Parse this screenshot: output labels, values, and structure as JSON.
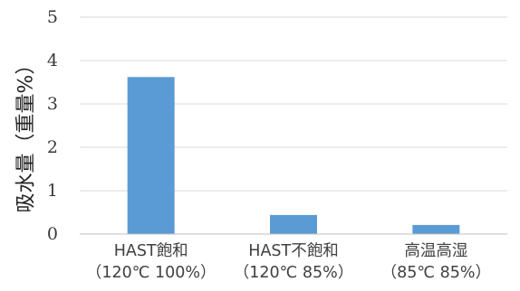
{
  "chart_data": {
    "type": "bar",
    "categories": [
      [
        "HAST飽和",
        "（120℃ 100%）"
      ],
      [
        "HAST不飽和",
        "（120℃ 85%）"
      ],
      [
        "高温高湿",
        "（85℃ 85%）"
      ]
    ],
    "values": [
      3.62,
      0.44,
      0.21
    ],
    "title": "",
    "xlabel": "",
    "ylabel": "吸水量（重量%）",
    "ylim": [
      0,
      5
    ],
    "yticks": [
      0,
      1,
      2,
      3,
      4,
      5
    ],
    "grid": true,
    "legend": "none",
    "bar_color": "#5b9bd5",
    "grid_color": "#d9d9d9"
  }
}
